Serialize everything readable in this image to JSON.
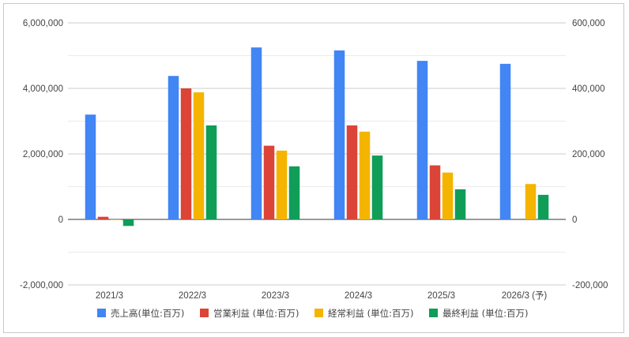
{
  "chart_data": {
    "type": "bar",
    "categories": [
      "2021/3",
      "2022/3",
      "2023/3",
      "2024/3",
      "2025/3",
      "2026/3 (予)"
    ],
    "series": [
      {
        "name": "売上高(単位:百万)",
        "axis": "left",
        "color": "#4285f4",
        "values": [
          3200000,
          4380000,
          5250000,
          5160000,
          4840000,
          4750000
        ]
      },
      {
        "name": "営業利益 (単位:百万)",
        "axis": "right",
        "color": "#db4437",
        "values": [
          8000,
          400000,
          225000,
          287000,
          165000,
          null
        ]
      },
      {
        "name": "経常利益 (単位:百万)",
        "axis": "right",
        "color": "#f4b400",
        "values": [
          -2000,
          388000,
          210000,
          268000,
          143000,
          108000
        ]
      },
      {
        "name": "最終利益 (単位:百万)",
        "axis": "right",
        "color": "#0f9d58",
        "values": [
          -20000,
          287000,
          162000,
          195000,
          92000,
          75000
        ]
      }
    ],
    "left_axis": {
      "ylim": [
        -2000000,
        6000000
      ],
      "ticks": [
        "-2,000,000",
        "0",
        "2,000,000",
        "4,000,000",
        "6,000,000"
      ]
    },
    "right_axis": {
      "ylim": [
        -200000,
        600000
      ],
      "ticks": [
        "-200,000",
        "0",
        "200,000",
        "400,000",
        "600,000"
      ]
    },
    "title": "",
    "xlabel": "",
    "ylabel": "",
    "grid": true,
    "legend_position": "bottom"
  }
}
